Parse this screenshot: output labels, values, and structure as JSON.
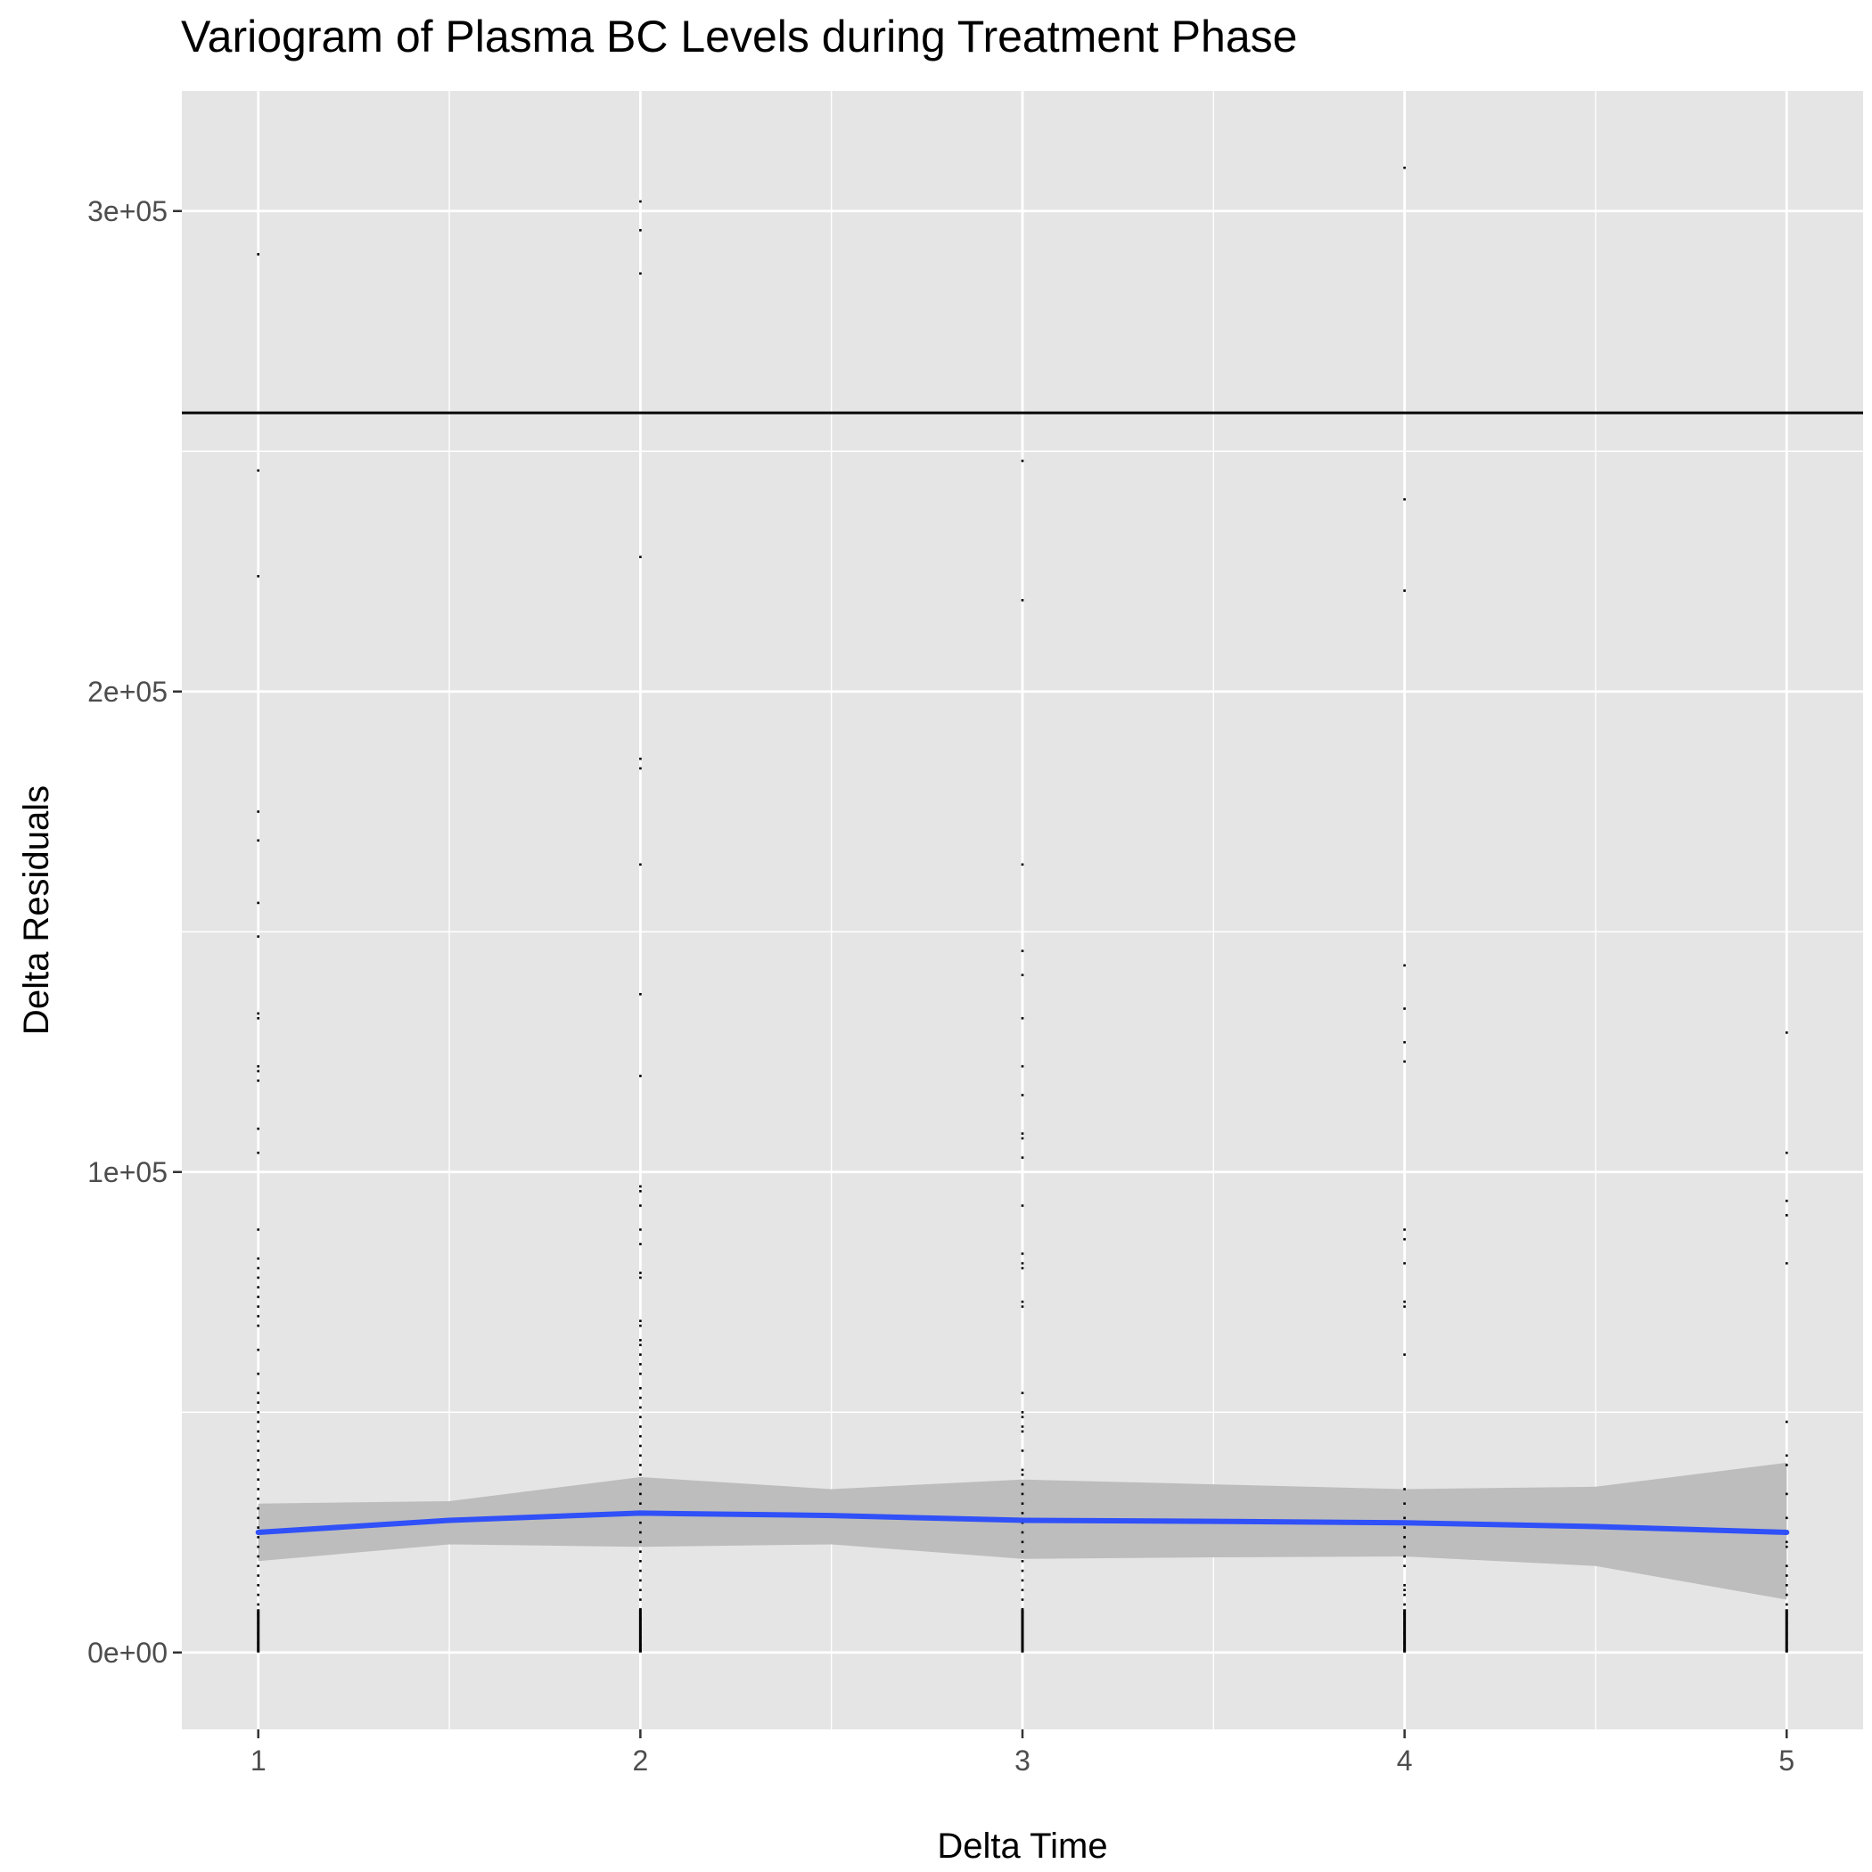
{
  "chart_data": {
    "type": "scatter",
    "title": "Variogram of Plasma BC Levels during Treatment Phase",
    "xlabel": "Delta Time",
    "ylabel": "Delta Residuals",
    "xlim": [
      0.8,
      5.2
    ],
    "ylim": [
      -16000,
      325000
    ],
    "x_ticks": [
      1,
      2,
      3,
      4,
      5
    ],
    "x_tick_labels": [
      "1",
      "2",
      "3",
      "4",
      "5"
    ],
    "y_ticks": [
      0,
      100000,
      200000,
      300000
    ],
    "y_tick_labels": [
      "0e+00",
      "1e+05",
      "2e+05",
      "3e+05"
    ],
    "grid": true,
    "legend": "none",
    "colors": {
      "panel_background": "#e5e5e5",
      "grid": "#ffffff",
      "points": "#000000",
      "smooth_line": "#3050f8",
      "confidence_band": "#bdbdbd",
      "reference_line": "#000000"
    },
    "reference_line": {
      "y": 258000
    },
    "series": [
      {
        "x": 1,
        "values": [
          291000,
          246000,
          224000,
          175000,
          169000,
          156000,
          149000,
          133000,
          132000,
          122000,
          121000,
          119000,
          109000,
          104000,
          88000,
          82000,
          80000,
          78000,
          76000,
          74000,
          72000,
          70000,
          68000,
          63000,
          58000,
          54000,
          52000,
          50000,
          48000,
          46000,
          44000,
          42000,
          40000,
          38000,
          36000,
          34000,
          32000,
          30000,
          28000,
          26000,
          24000,
          22000,
          20000,
          18000,
          16000,
          14000,
          12000,
          10000,
          8000,
          6000,
          4000,
          2000,
          500
        ]
      },
      {
        "x": 2,
        "values": [
          302000,
          296000,
          287000,
          228000,
          186000,
          184000,
          164000,
          137000,
          120000,
          97000,
          96000,
          93000,
          88000,
          85000,
          79000,
          78000,
          69000,
          68000,
          65000,
          64000,
          62000,
          60000,
          58000,
          55000,
          53000,
          51000,
          49000,
          47000,
          45000,
          43000,
          41000,
          39000,
          37000,
          35000,
          33000,
          31000,
          29000,
          27000,
          25000,
          23000,
          21000,
          19000,
          17000,
          15000,
          13000,
          11000,
          9000,
          7000,
          5000,
          3000,
          1500,
          500
        ]
      },
      {
        "x": 3,
        "values": [
          248000,
          219000,
          164000,
          146000,
          141000,
          132000,
          122000,
          116000,
          108000,
          107000,
          103000,
          93000,
          83000,
          81000,
          80000,
          73000,
          72000,
          54000,
          50000,
          49000,
          47000,
          46000,
          42000,
          38000,
          37000,
          35000,
          33000,
          31000,
          29000,
          27000,
          25000,
          23000,
          21000,
          19000,
          17000,
          15000,
          13000,
          11000,
          9000,
          7000,
          5000,
          3000,
          1500,
          500
        ]
      },
      {
        "x": 4,
        "values": [
          309000,
          240000,
          221000,
          143000,
          134000,
          127000,
          123000,
          88000,
          86000,
          81000,
          73000,
          72000,
          62000,
          34000,
          31000,
          28000,
          26000,
          24000,
          22000,
          20000,
          18000,
          14000,
          13000,
          12000,
          10000,
          8000,
          6000,
          4000,
          2000,
          500
        ]
      },
      {
        "x": 5,
        "values": [
          129000,
          104000,
          94000,
          91000,
          81000,
          48000,
          41000,
          39000,
          33000,
          28000,
          25000,
          23000,
          22000,
          18000,
          16000,
          14000,
          12000,
          10000,
          8000,
          6000,
          4000,
          2000,
          500
        ]
      }
    ],
    "smooth": {
      "x": [
        1,
        1.5,
        2,
        2.5,
        3,
        3.5,
        4,
        4.5,
        5
      ],
      "y": [
        25000,
        27500,
        29000,
        28500,
        27500,
        27300,
        27000,
        26200,
        25000
      ],
      "lower": [
        19000,
        22500,
        22000,
        22500,
        19500,
        19800,
        20000,
        18000,
        11000
      ],
      "upper": [
        31000,
        31500,
        36500,
        34000,
        36000,
        35000,
        34000,
        34500,
        39500
      ]
    }
  }
}
